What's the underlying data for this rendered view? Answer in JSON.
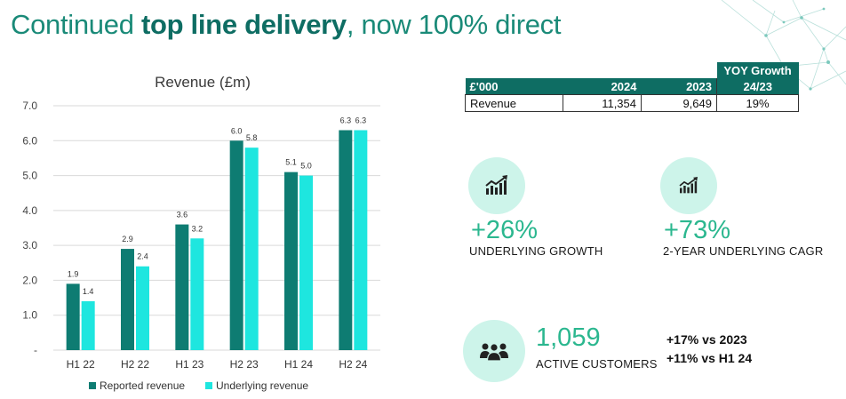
{
  "page": {
    "title_pre": "Continued ",
    "title_bold": "top line delivery",
    "title_post": ", now 100% direct"
  },
  "colors": {
    "reported": "#0e7c72",
    "underlying": "#1ee6df",
    "accent": "#2bb78f",
    "circle": "#cdf4ea",
    "table_header": "#0e6d63"
  },
  "chart_data": {
    "type": "bar",
    "title": "Revenue (£m)",
    "categories": [
      "H1 22",
      "H2 22",
      "H1 23",
      "H2 23",
      "H1 24",
      "H2 24"
    ],
    "series": [
      {
        "name": "Reported revenue",
        "values": [
          1.9,
          2.9,
          3.6,
          6.0,
          5.1,
          6.3
        ],
        "labels": [
          "1.9",
          "2.9",
          "3.6",
          "6.0",
          "5.1",
          "6.3"
        ]
      },
      {
        "name": "Underlying revenue",
        "values": [
          1.4,
          2.4,
          3.2,
          5.8,
          5.0,
          6.3
        ],
        "labels": [
          "1.4",
          "2.4",
          "3.2",
          "5.8",
          "5.0",
          "6.3"
        ]
      }
    ],
    "yticks": [
      "-",
      "1.0",
      "2.0",
      "3.0",
      "4.0",
      "5.0",
      "6.0",
      "7.0"
    ],
    "ylim": [
      0,
      7
    ],
    "grid": true,
    "legend": "bottom",
    "xlabel": "",
    "ylabel": ""
  },
  "table": {
    "yoy_title": "YOY Growth",
    "headers": [
      "£'000",
      "2024",
      "2023",
      "24/23"
    ],
    "rows": [
      {
        "label": "Revenue",
        "v2024": "11,354",
        "v2023": "9,649",
        "yoy": "19%"
      }
    ]
  },
  "kpis": [
    {
      "icon": "chart-growth-icon",
      "value": "+26%",
      "label": "UNDERLYING GROWTH"
    },
    {
      "icon": "chart-growth-icon",
      "value": "+73%",
      "label": "2-YEAR UNDERLYING CAGR"
    }
  ],
  "customers": {
    "icon": "people-group-icon",
    "value": "1,059",
    "label": "ACTIVE CUSTOMERS",
    "stats": [
      "+17% vs 2023",
      "+11% vs H1 24"
    ]
  }
}
